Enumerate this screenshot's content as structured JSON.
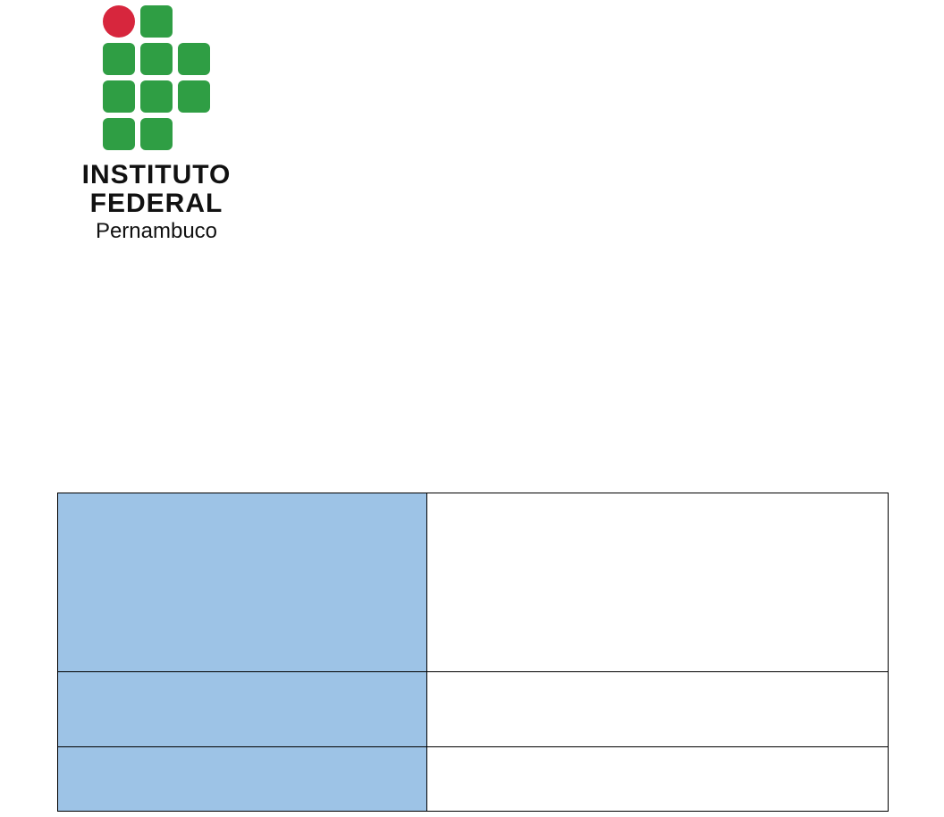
{
  "logo": {
    "line1": "INSTITUTO",
    "line2": "FEDERAL",
    "line3": "Pernambuco",
    "square_color": "#2f9e44",
    "circle_color": "#d7263d"
  },
  "table": {
    "header_bg": "#9dc3e6",
    "rows": [
      {
        "label": "",
        "value": ""
      },
      {
        "label": "",
        "value": ""
      },
      {
        "label": "",
        "value": ""
      }
    ]
  }
}
